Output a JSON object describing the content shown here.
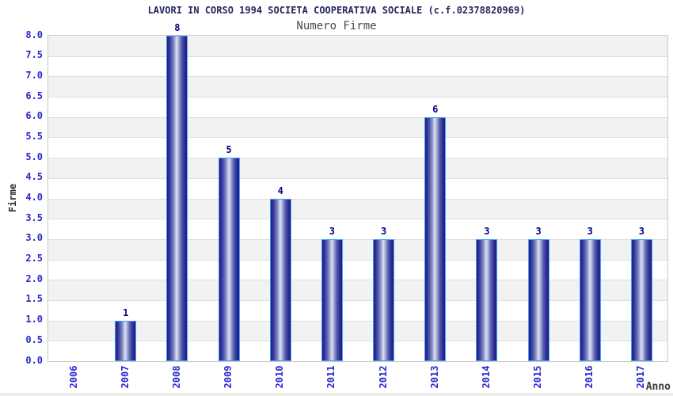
{
  "header": {
    "title": "LAVORI IN CORSO 1994 SOCIETA COOPERATIVA SOCIALE (c.f.02378820969)",
    "subtitle": "Numero Firme"
  },
  "chart_data": {
    "type": "bar",
    "title": "Numero Firme",
    "categories": [
      "2006",
      "2007",
      "2008",
      "2009",
      "2010",
      "2011",
      "2012",
      "2013",
      "2014",
      "2015",
      "2016",
      "2017"
    ],
    "values": [
      0,
      1,
      8,
      5,
      4,
      3,
      3,
      6,
      3,
      3,
      3,
      3
    ],
    "xlabel": "Anno",
    "ylabel": "Firme",
    "ylim": [
      0,
      8
    ],
    "y_tick_step": 0.5,
    "y_ticks": [
      "0.0",
      "0.5",
      "1.0",
      "1.5",
      "2.0",
      "2.5",
      "3.0",
      "3.5",
      "4.0",
      "4.5",
      "5.0",
      "5.5",
      "6.0",
      "6.5",
      "7.0",
      "7.5",
      "8.0"
    ],
    "grid": "horizontal alternating bands every 0.5",
    "legend_position": "none",
    "show_value_labels_above_bars": true,
    "colors": {
      "bar_dark": "#1c1c82",
      "bar_highlight": "#dee2f4",
      "bar_border": "#44a0ff",
      "value_label": "#00008b",
      "tick_label": "#2828d0",
      "title": "#26265e",
      "subtitle": "#474747",
      "band_gray": "#f2f2f2",
      "band_white": "#ffffff",
      "gridline": "#dedede",
      "plot_border": "#c9c9c9"
    }
  }
}
